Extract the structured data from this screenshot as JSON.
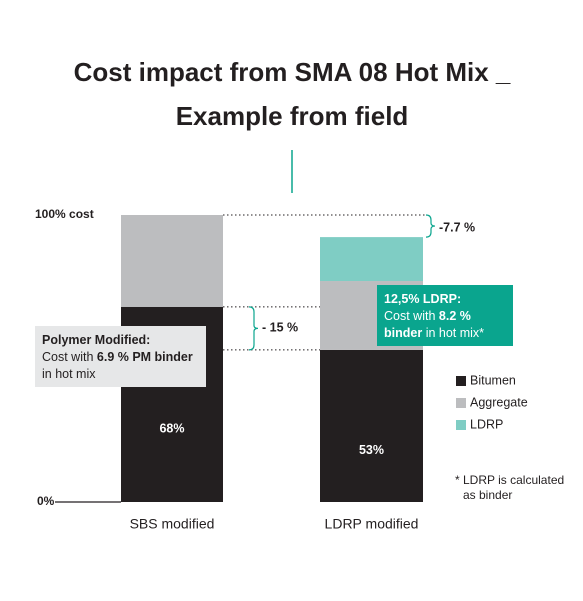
{
  "chart_data": {
    "type": "stacked_bar",
    "title": [
      "Cost impact from SMA 08 Hot Mix _",
      "Example from field"
    ],
    "categories": [
      "SBS modified",
      "LDRP modified"
    ],
    "series": [
      {
        "name": "Bitumen",
        "color": "#231f20",
        "values": [
          68,
          53
        ],
        "value_labels": [
          "68%",
          "53%"
        ]
      },
      {
        "name": "Aggregate",
        "color": "#bcbdbf",
        "values": [
          32,
          24
        ]
      },
      {
        "name": "LDRP",
        "color": "#7fcdc4",
        "values": [
          0,
          15.3
        ]
      }
    ],
    "ylim": [
      0,
      100
    ],
    "yticks": [
      {
        "value": 0,
        "label": "0%"
      },
      {
        "value": 100,
        "label": "100% cost"
      }
    ],
    "legend": "right",
    "annotations": {
      "total_reduction": "-7.7 %",
      "bitumen_reduction": "- 15 %",
      "polymer_box": [
        "Polymer Modified:",
        "Cost with",
        "6.9 % PM binder",
        "in hot mix"
      ],
      "ldrp_box": [
        "12,5% LDRP:",
        "Cost with",
        "8.2 %",
        "binder",
        "in hot mix*"
      ],
      "footnote": [
        "* LDRP is calculated",
        "as binder"
      ]
    }
  }
}
